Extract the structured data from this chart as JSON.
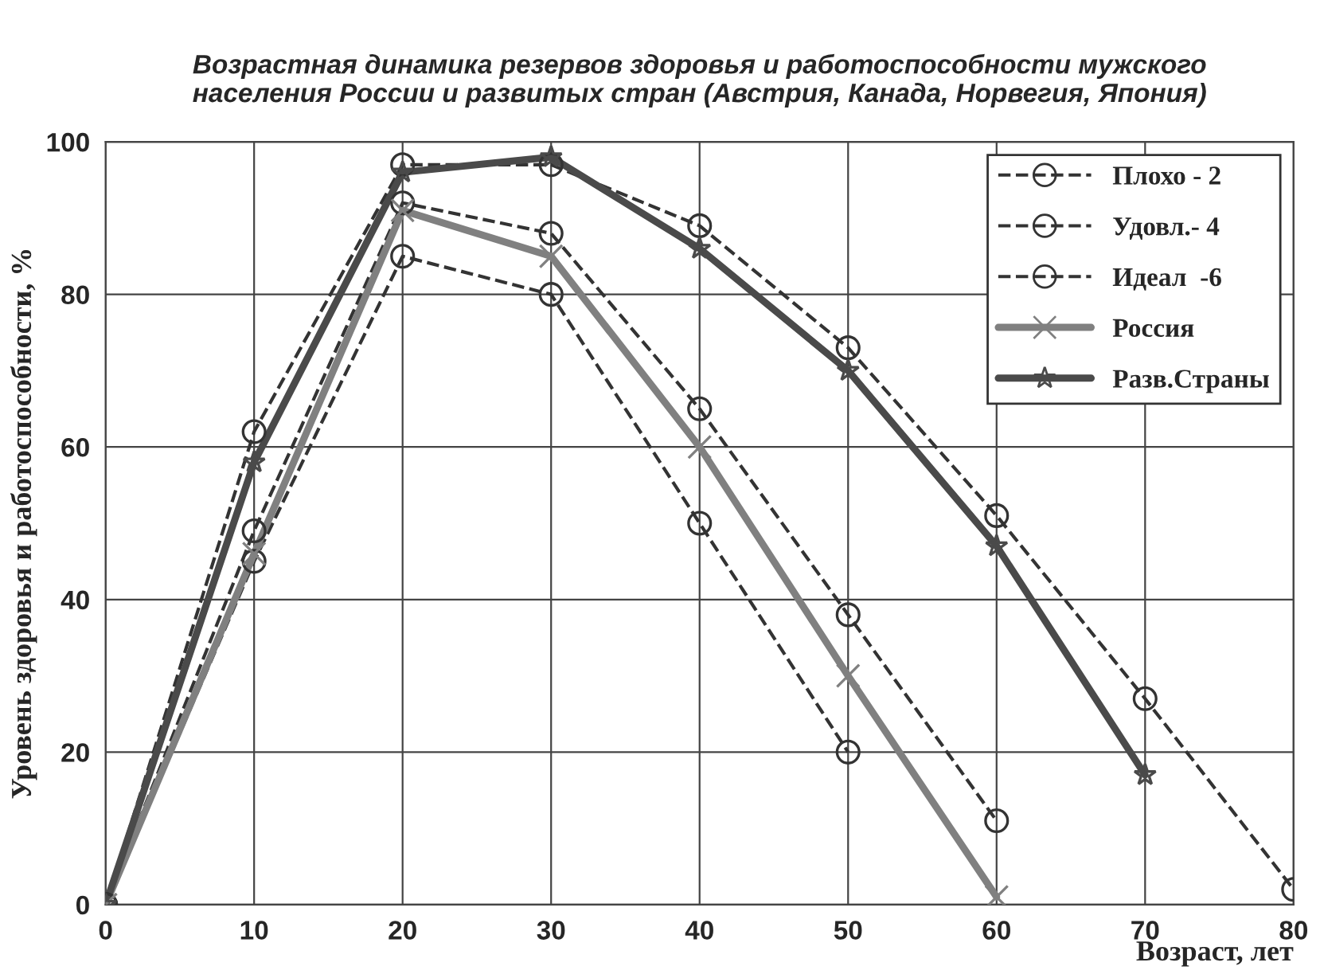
{
  "chart_data": {
    "type": "line",
    "title": "Возрастная динамика резервов здоровья и работоспособности мужского\nнаселения России и развитых стран (Австрия, Канада, Норвегия, Япония)",
    "xlabel": "Возраст, лет",
    "ylabel": "Уровень здоровья и работоспособности, %",
    "xlim": [
      0,
      80
    ],
    "ylim": [
      0,
      100
    ],
    "xticks": [
      0,
      10,
      20,
      30,
      40,
      50,
      60,
      70,
      80
    ],
    "yticks": [
      0,
      20,
      40,
      60,
      80,
      100
    ],
    "grid": true,
    "legend": "top right",
    "series": [
      {
        "name": "Плохо - 2",
        "color": "#333333",
        "line_style": "dashed",
        "marker": "circle",
        "x": [
          0,
          10,
          20,
          30,
          40,
          50
        ],
        "values": [
          0,
          45,
          85,
          80,
          50,
          20
        ]
      },
      {
        "name": "Удовл.- 4",
        "color": "#333333",
        "line_style": "dashed",
        "marker": "circle",
        "x": [
          0,
          10,
          20,
          30,
          40,
          50,
          60
        ],
        "values": [
          0,
          49,
          92,
          88,
          65,
          38,
          11
        ]
      },
      {
        "name": "Идеал  -6",
        "color": "#333333",
        "line_style": "dashed",
        "marker": "circle",
        "x": [
          0,
          10,
          20,
          30,
          40,
          50,
          60,
          70,
          80
        ],
        "values": [
          0,
          62,
          97,
          97,
          89,
          73,
          51,
          27,
          2
        ]
      },
      {
        "name": "Россия",
        "color": "#808080",
        "line_style": "solid",
        "marker": "cross",
        "x": [
          0,
          10,
          20,
          30,
          40,
          50,
          60
        ],
        "values": [
          0,
          46,
          91,
          85,
          60,
          30,
          1
        ]
      },
      {
        "name": "Разв.Страны",
        "color": "#4a4a4a",
        "line_style": "solid",
        "marker": "star",
        "x": [
          0,
          10,
          20,
          30,
          40,
          50,
          60,
          70
        ],
        "values": [
          0,
          58,
          96,
          98,
          86,
          70,
          47,
          17
        ]
      }
    ]
  }
}
